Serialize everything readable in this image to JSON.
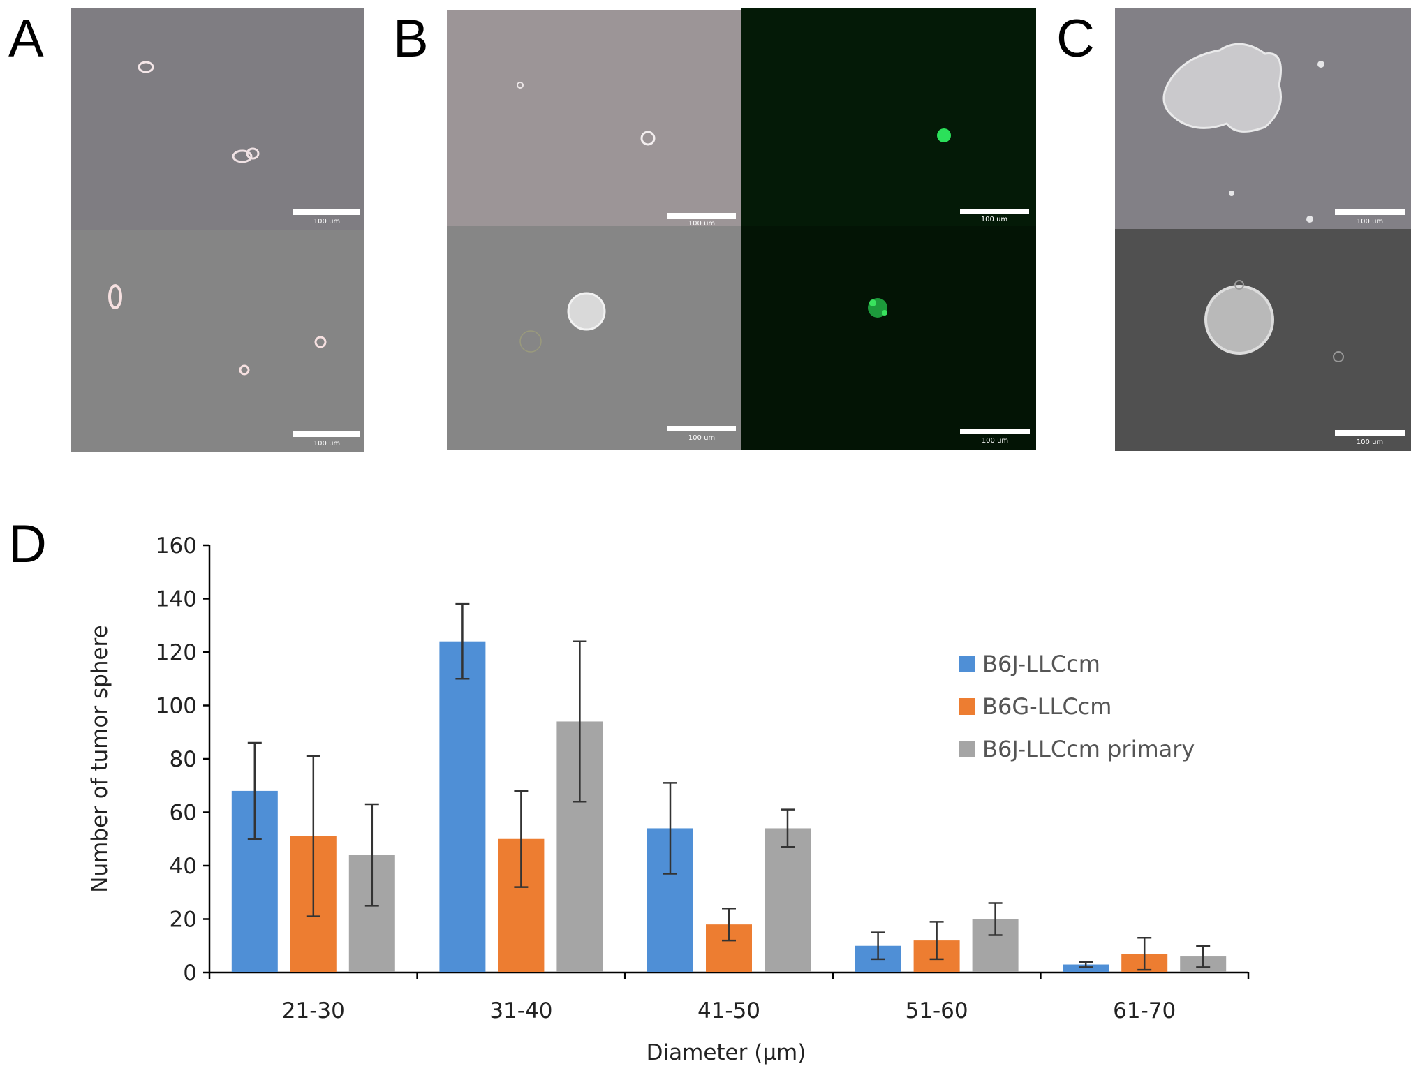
{
  "panels": {
    "A": {
      "letter": "A",
      "scale_label": "100 um"
    },
    "B": {
      "letter": "B",
      "scale_label": "100 um"
    },
    "C": {
      "letter": "C",
      "scale_label": "100 um"
    },
    "D": {
      "letter": "D"
    }
  },
  "chart_data": {
    "type": "bar",
    "title": "",
    "xlabel": "Diameter (μm)",
    "ylabel": "Number of tumor sphere",
    "ylim": [
      0,
      160
    ],
    "yticks": [
      0,
      20,
      40,
      60,
      80,
      100,
      120,
      140,
      160
    ],
    "categories": [
      "21-30",
      "31-40",
      "41-50",
      "51-60",
      "61-70"
    ],
    "legend_position": "right",
    "series": [
      {
        "name": "B6J-LLCcm",
        "color": "#4f8fd6",
        "values": [
          68,
          124,
          54,
          10,
          3
        ],
        "errors": [
          18,
          14,
          17,
          5,
          1
        ]
      },
      {
        "name": "B6G-LLCcm",
        "color": "#ed7d31",
        "values": [
          51,
          50,
          18,
          12,
          7
        ],
        "errors": [
          30,
          18,
          6,
          7,
          6
        ]
      },
      {
        "name": "B6J-LLCcm primary",
        "color": "#a5a5a5",
        "values": [
          44,
          94,
          54,
          20,
          6
        ],
        "errors": [
          19,
          30,
          7,
          6,
          4
        ]
      }
    ]
  }
}
